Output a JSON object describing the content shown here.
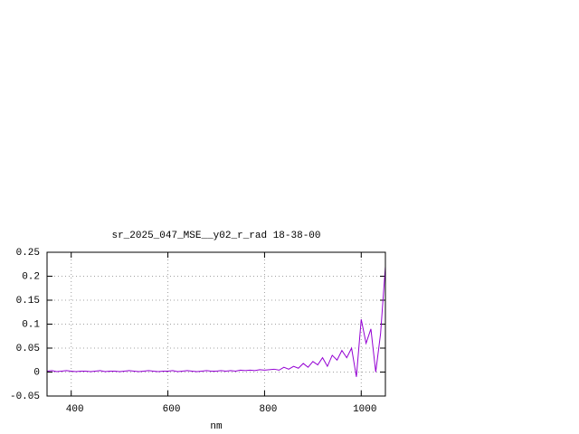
{
  "chart_data": {
    "type": "line",
    "title": "sr_2025_047_MSE__y02_r_rad 18-38-00",
    "x_label": "nm",
    "x": [
      350,
      360,
      370,
      380,
      390,
      400,
      410,
      420,
      430,
      440,
      450,
      460,
      470,
      480,
      490,
      500,
      510,
      520,
      530,
      540,
      550,
      560,
      570,
      580,
      590,
      600,
      610,
      620,
      630,
      640,
      650,
      660,
      670,
      680,
      690,
      700,
      710,
      720,
      730,
      740,
      750,
      760,
      770,
      780,
      790,
      800,
      810,
      820,
      830,
      840,
      850,
      860,
      870,
      880,
      890,
      900,
      910,
      920,
      930,
      940,
      950,
      960,
      970,
      980,
      990,
      1000,
      1010,
      1020,
      1030,
      1040,
      1050
    ],
    "series": [
      {
        "name": "sr_2025_047_MSE__y02_r_rad",
        "color": "#9400d3",
        "values": [
          0.002,
          0.003,
          0.001,
          0.002,
          0.003,
          0.002,
          0.001,
          0.002,
          0.002,
          0.001,
          0.002,
          0.003,
          0.001,
          0.002,
          0.002,
          0.001,
          0.002,
          0.003,
          0.002,
          0.001,
          0.002,
          0.003,
          0.002,
          0.001,
          0.002,
          0.002,
          0.003,
          0.001,
          0.002,
          0.003,
          0.002,
          0.001,
          0.002,
          0.003,
          0.002,
          0.002,
          0.003,
          0.002,
          0.003,
          0.002,
          0.004,
          0.003,
          0.004,
          0.003,
          0.005,
          0.004,
          0.005,
          0.006,
          0.004,
          0.01,
          0.006,
          0.012,
          0.008,
          0.018,
          0.01,
          0.022,
          0.015,
          0.03,
          0.012,
          0.035,
          0.025,
          0.045,
          0.03,
          0.05,
          -0.01,
          0.11,
          0.06,
          0.09,
          0.0,
          0.08,
          0.22
        ]
      }
    ],
    "xlim": [
      350,
      1050
    ],
    "xticks": [
      400,
      600,
      800,
      1000
    ],
    "ylim": [
      -0.05,
      0.25
    ],
    "yticks": [
      -0.05,
      0,
      0.05,
      0.1,
      0.15,
      0.2,
      0.25
    ],
    "grid": true
  }
}
